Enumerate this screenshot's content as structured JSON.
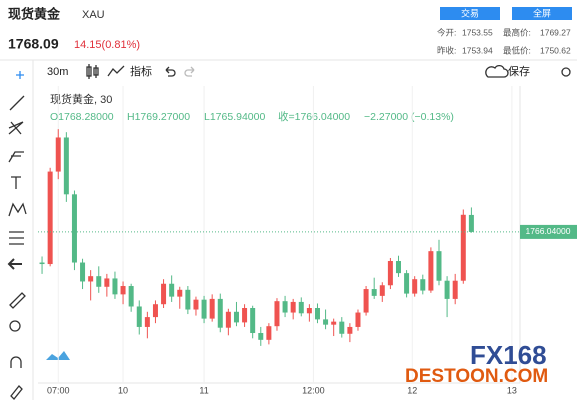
{
  "header": {
    "name": "现货黄金",
    "symbol": "XAU",
    "price": "1768.09",
    "change": "14.15(0.81%)",
    "buttons": [
      "交易",
      "全屏"
    ],
    "stats": [
      [
        "今开:",
        "1753.55",
        "最高价:",
        "1769.27"
      ],
      [
        "昨收:",
        "1753.94",
        "最低价:",
        "1750.62"
      ]
    ]
  },
  "toolbar": {
    "interval": "30m",
    "indicators": "指标",
    "save": "保存"
  },
  "legend": {
    "title": "现货黄金, 30",
    "open": "O1768.28000",
    "high": "H1769.27000",
    "low": "L1765.94000",
    "close": "收=1766.04000",
    "change": "−2.27000 (−0.13%)"
  },
  "watermark": {
    "brand": "FX168",
    "site": "DESTOON.COM"
  },
  "chart_data": {
    "type": "candlestick",
    "up_color": "#ef5350",
    "down_color": "#53b987",
    "grid": true,
    "ylim": [
      1746.5,
      1784.5
    ],
    "xlim": [
      -0.5,
      59
    ],
    "xticks": [
      {
        "value": 2,
        "label": "07:00"
      },
      {
        "value": 10,
        "label": "10"
      },
      {
        "value": 20,
        "label": "11"
      },
      {
        "value": 33.5,
        "label": "12:00"
      },
      {
        "value": 45.7,
        "label": "12"
      },
      {
        "value": 58,
        "label": "13"
      }
    ],
    "price_line": {
      "value": 1766.04,
      "label": "1766.04000",
      "color": "#53b987"
    },
    "open": [
      1762.0,
      1761.8,
      1774.0,
      1778.5,
      1771.0,
      1762.0,
      1759.5,
      1760.2,
      1758.8,
      1759.9,
      1757.8,
      1758.9,
      1756.2,
      1753.5,
      1754.8,
      1756.5,
      1759.2,
      1757.5,
      1758.4,
      1755.8,
      1757.1,
      1754.6,
      1757.2,
      1753.4,
      1755.5,
      1754.1,
      1756.0,
      1752.7,
      1751.8,
      1753.6,
      1756.9,
      1755.4,
      1756.8,
      1755.3,
      1756.0,
      1754.5,
      1753.8,
      1754.2,
      1752.6,
      1753.5,
      1755.4,
      1758.5,
      1757.6,
      1759.0,
      1762.2,
      1760.6,
      1757.9,
      1759.8,
      1758.3,
      1763.5,
      1759.6,
      1757.2,
      1759.6,
      1768.28
    ],
    "high": [
      1762.8,
      1774.5,
      1779.6,
      1779.2,
      1771.5,
      1762.5,
      1761.0,
      1761.5,
      1760.5,
      1760.8,
      1759.5,
      1759.2,
      1757.0,
      1755.5,
      1757.0,
      1759.8,
      1760.3,
      1758.8,
      1758.9,
      1757.5,
      1757.6,
      1757.8,
      1757.9,
      1755.9,
      1756.8,
      1756.5,
      1756.3,
      1753.5,
      1754.0,
      1757.3,
      1757.6,
      1757.2,
      1757.4,
      1756.5,
      1756.6,
      1755.8,
      1754.6,
      1754.8,
      1754.0,
      1755.8,
      1758.9,
      1760.0,
      1759.4,
      1762.6,
      1762.9,
      1761.0,
      1760.2,
      1760.4,
      1764.0,
      1765.0,
      1760.2,
      1760.5,
      1769.0,
      1769.27
    ],
    "low": [
      1760.5,
      1761.5,
      1773.0,
      1770.0,
      1761.0,
      1758.5,
      1757.0,
      1758.0,
      1757.5,
      1757.2,
      1756.5,
      1755.5,
      1752.5,
      1752.0,
      1754.0,
      1756.0,
      1756.8,
      1755.9,
      1755.2,
      1755.0,
      1754.0,
      1754.2,
      1752.8,
      1752.4,
      1753.6,
      1753.5,
      1752.0,
      1751.0,
      1751.2,
      1753.0,
      1754.8,
      1754.5,
      1754.9,
      1754.2,
      1754.0,
      1753.2,
      1752.3,
      1752.1,
      1751.5,
      1753.0,
      1755.0,
      1757.2,
      1756.8,
      1758.5,
      1760.1,
      1757.4,
      1757.5,
      1757.8,
      1758.0,
      1759.0,
      1754.8,
      1756.5,
      1759.2,
      1765.94
    ],
    "close": [
      1761.8,
      1774.0,
      1778.5,
      1771.0,
      1762.0,
      1759.5,
      1760.2,
      1758.8,
      1759.9,
      1757.8,
      1758.9,
      1756.2,
      1753.5,
      1754.8,
      1756.5,
      1759.2,
      1757.5,
      1758.4,
      1755.8,
      1757.1,
      1754.6,
      1757.2,
      1753.4,
      1755.5,
      1754.1,
      1756.0,
      1752.7,
      1751.8,
      1753.6,
      1756.9,
      1755.4,
      1756.8,
      1755.3,
      1756.0,
      1754.5,
      1753.8,
      1754.2,
      1752.6,
      1753.5,
      1755.4,
      1758.5,
      1757.6,
      1759.0,
      1762.2,
      1760.6,
      1757.9,
      1759.8,
      1758.3,
      1763.5,
      1759.6,
      1757.2,
      1759.6,
      1768.3,
      1766.04
    ]
  }
}
